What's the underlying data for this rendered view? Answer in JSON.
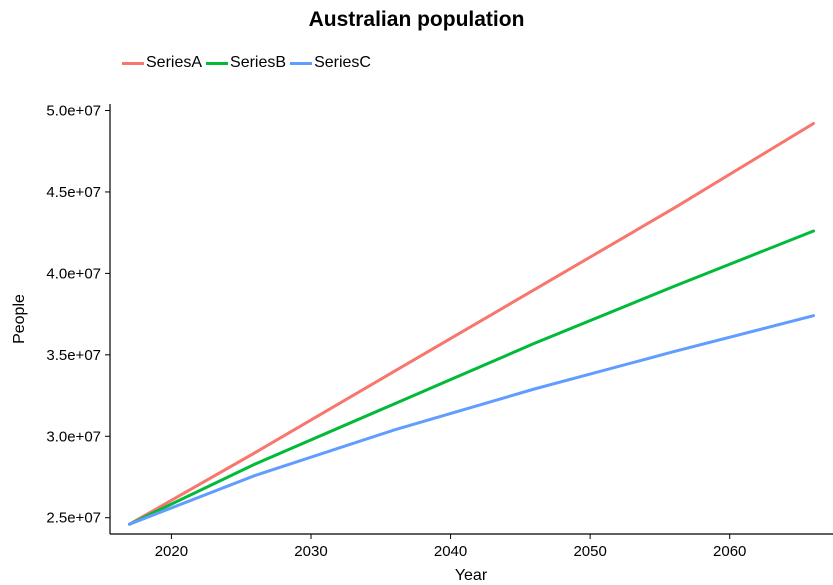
{
  "chart_data": {
    "type": "line",
    "title": "Australian population",
    "xlabel": "Year",
    "ylabel": "People",
    "xlim": [
      2015.6,
      2067.4
    ],
    "ylim": [
      24000000,
      50400000
    ],
    "x_ticks": [
      2020,
      2030,
      2040,
      2050,
      2060
    ],
    "x_tick_labels": [
      "2020",
      "2030",
      "2040",
      "2050",
      "2060"
    ],
    "y_ticks": [
      25000000,
      30000000,
      35000000,
      40000000,
      45000000,
      50000000
    ],
    "y_tick_labels": [
      "2.5e+07",
      "3.0e+07",
      "3.5e+07",
      "4.0e+07",
      "4.5e+07",
      "5.0e+07"
    ],
    "grid": false,
    "legend_position": "top-left",
    "x": [
      2017,
      2026,
      2036,
      2046,
      2056,
      2066
    ],
    "series": [
      {
        "name": "SeriesA",
        "color": "#F8766D",
        "values": [
          24600000,
          29000000,
          34000000,
          39000000,
          44000000,
          49200000
        ]
      },
      {
        "name": "SeriesB",
        "color": "#00BA38",
        "values": [
          24600000,
          28300000,
          32000000,
          35700000,
          39200000,
          42600000
        ]
      },
      {
        "name": "SeriesC",
        "color": "#619CFF",
        "values": [
          24600000,
          27600000,
          30400000,
          32900000,
          35200000,
          37400000
        ]
      }
    ]
  }
}
